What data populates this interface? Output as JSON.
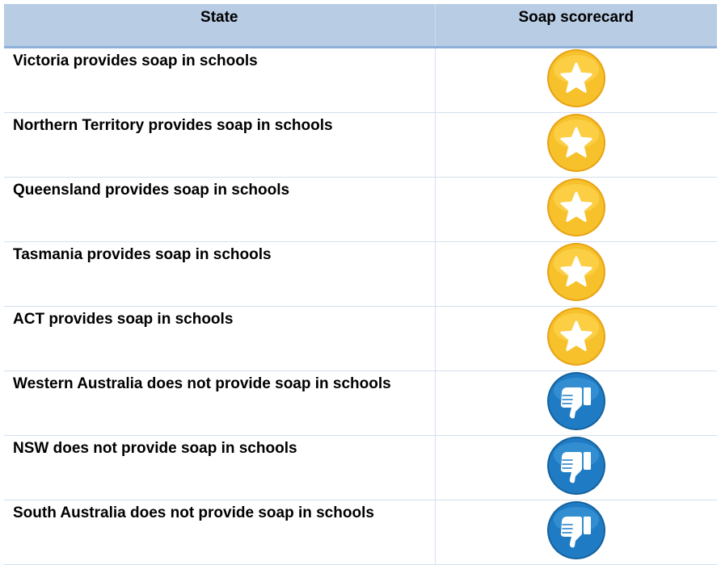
{
  "header": {
    "state": "State",
    "scorecard": "Soap scorecard"
  },
  "rows": [
    {
      "state": "Victoria provides soap in schools",
      "icon": "star-icon",
      "rating": "star"
    },
    {
      "state": "Northern Territory provides soap in schools",
      "icon": "star-icon",
      "rating": "star"
    },
    {
      "state": "Queensland provides soap in schools",
      "icon": "star-icon",
      "rating": "star"
    },
    {
      "state": "Tasmania provides soap in schools",
      "icon": "star-icon",
      "rating": "star"
    },
    {
      "state": "ACT provides soap in schools",
      "icon": "star-icon",
      "rating": "star"
    },
    {
      "state": "Western Australia does not provide soap in schools",
      "icon": "thumbs-down-icon",
      "rating": "thumbs-down"
    },
    {
      "state": "NSW does not provide soap in schools",
      "icon": "thumbs-down-icon",
      "rating": "thumbs-down"
    },
    {
      "state": "South Australia does not provide soap in schools",
      "icon": "thumbs-down-icon",
      "rating": "thumbs-down"
    }
  ],
  "colors": {
    "header_bg": "#b8cce4",
    "star_gold": "#f6c12b",
    "thumb_blue": "#1f7cc4"
  }
}
